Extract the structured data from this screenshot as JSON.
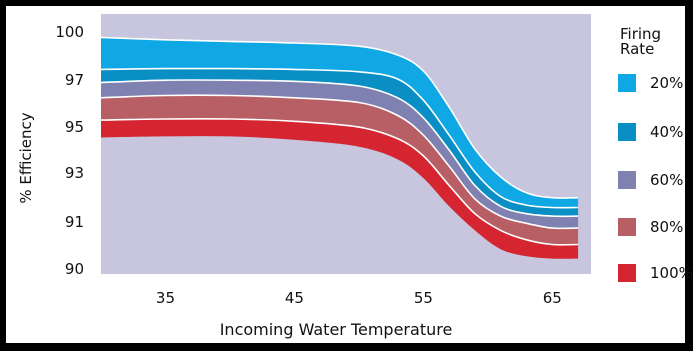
{
  "chart_data": {
    "type": "area",
    "xlabel": "Incoming Water Temperature",
    "ylabel": "% Efficiency",
    "xlim": [
      30,
      68
    ],
    "x_ticks": [
      35,
      45,
      55,
      65
    ],
    "y_ticks": [
      90,
      91,
      93,
      95,
      97,
      100
    ],
    "background": "#c8c5de",
    "legend": {
      "title_lines": [
        "Firing",
        "Rate"
      ],
      "placement": "right"
    },
    "series": [
      {
        "name": "20%",
        "color": "#0fa8e5",
        "x": [
          30,
          35,
          40,
          45,
          50,
          53,
          55,
          57,
          59,
          61,
          63,
          65,
          67
        ],
        "upper": [
          99.6,
          99.45,
          99.35,
          99.25,
          99.05,
          98.5,
          97.5,
          95.8,
          94.0,
          92.8,
          92.15,
          91.95,
          91.95
        ],
        "lower": [
          97.6,
          97.65,
          97.65,
          97.6,
          97.45,
          97.0,
          96.1,
          94.6,
          93.0,
          92.0,
          91.65,
          91.55,
          91.55
        ]
      },
      {
        "name": "40%",
        "color": "#0a8fc4",
        "x": [
          30,
          35,
          40,
          45,
          50,
          53,
          55,
          57,
          59,
          61,
          63,
          65,
          67
        ],
        "upper": [
          97.6,
          97.65,
          97.65,
          97.6,
          97.45,
          97.0,
          96.1,
          94.6,
          93.0,
          92.0,
          91.65,
          91.55,
          91.55
        ],
        "lower": [
          96.85,
          96.95,
          96.95,
          96.9,
          96.7,
          96.2,
          95.35,
          93.95,
          92.45,
          91.6,
          91.3,
          91.2,
          91.2
        ]
      },
      {
        "name": "60%",
        "color": "#7f81b1",
        "x": [
          30,
          35,
          40,
          45,
          50,
          53,
          55,
          57,
          59,
          61,
          63,
          65,
          67
        ],
        "upper": [
          96.85,
          96.95,
          96.95,
          96.9,
          96.7,
          96.2,
          95.35,
          93.95,
          92.45,
          91.6,
          91.3,
          91.2,
          91.2
        ],
        "lower": [
          96.2,
          96.3,
          96.3,
          96.2,
          96.0,
          95.45,
          94.6,
          93.25,
          91.9,
          91.2,
          90.95,
          90.85,
          90.85
        ]
      },
      {
        "name": "80%",
        "color": "#b85f65",
        "x": [
          30,
          35,
          40,
          45,
          50,
          53,
          55,
          57,
          59,
          61,
          63,
          65,
          67
        ],
        "upper": [
          96.2,
          96.3,
          96.3,
          96.2,
          96.0,
          95.45,
          94.6,
          93.25,
          91.9,
          91.2,
          90.95,
          90.85,
          90.85
        ],
        "lower": [
          95.25,
          95.3,
          95.3,
          95.2,
          94.95,
          94.45,
          93.7,
          92.45,
          91.3,
          90.8,
          90.6,
          90.5,
          90.5
        ]
      },
      {
        "name": "100%",
        "color": "#d42531",
        "x": [
          30,
          35,
          40,
          45,
          50,
          53,
          55,
          57,
          59,
          61,
          63,
          65,
          67
        ],
        "upper": [
          95.25,
          95.3,
          95.3,
          95.2,
          94.95,
          94.45,
          93.7,
          92.45,
          91.3,
          90.8,
          90.6,
          90.5,
          90.5
        ],
        "lower": [
          94.5,
          94.55,
          94.55,
          94.4,
          94.1,
          93.55,
          92.75,
          91.6,
          90.8,
          90.4,
          90.25,
          90.2,
          90.2
        ]
      }
    ]
  }
}
